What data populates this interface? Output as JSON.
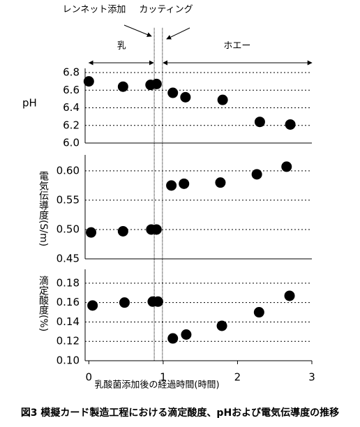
{
  "chart_data": [
    {
      "type": "scatter",
      "y_label": "pH",
      "color": "#000000",
      "grid": true,
      "x": [
        0,
        0.46,
        0.83,
        0.91,
        1.13,
        1.3,
        1.8,
        2.3,
        2.71
      ],
      "values": [
        6.7,
        6.64,
        6.66,
        6.67,
        6.57,
        6.52,
        6.49,
        6.24,
        6.21
      ],
      "xlim": [
        -0.05,
        3
      ],
      "ylim": [
        6.0,
        6.8
      ],
      "yticks": [
        {
          "value": 6,
          "label": "6.0"
        },
        6.2,
        6.4,
        6.6,
        6.8
      ]
    },
    {
      "type": "scatter",
      "y_label": "電気伝導度(S/m)",
      "color": "#000000",
      "grid": true,
      "x": [
        0.03,
        0.46,
        0.84,
        0.91,
        1.11,
        1.28,
        1.77,
        2.26,
        2.66
      ],
      "values": [
        0.495,
        0.497,
        0.5,
        0.5,
        0.575,
        0.578,
        0.58,
        0.594,
        0.607
      ],
      "xlim": [
        -0.05,
        3
      ],
      "ylim": [
        0.45,
        0.62
      ],
      "yticks": [
        0.45,
        {
          "value": 0.5,
          "label": "0.50"
        },
        0.55,
        {
          "value": 0.6,
          "label": "0.60"
        }
      ]
    },
    {
      "type": "scatter",
      "y_label": "滴定酸度(%)",
      "x_label": "乳酸菌添加後の経過時間(時間)",
      "color": "#000000",
      "grid": true,
      "x": [
        0.05,
        0.48,
        0.86,
        0.93,
        1.13,
        1.31,
        1.79,
        2.29,
        2.7
      ],
      "values": [
        0.157,
        0.16,
        0.161,
        0.161,
        0.123,
        0.127,
        0.136,
        0.15,
        0.167
      ],
      "xlim": [
        -0.05,
        3
      ],
      "ylim": [
        0.1,
        0.19
      ],
      "yticks": [
        {
          "value": 0.1,
          "label": "0.10"
        },
        0.12,
        0.14,
        0.16,
        0.18
      ],
      "xticks": [
        0,
        1,
        2,
        3
      ]
    }
  ],
  "markers": [
    {
      "label": "レンネット添加",
      "x": 0.88
    },
    {
      "label": "カッティング",
      "x": 0.99
    }
  ],
  "phases": [
    {
      "label": "乳"
    },
    {
      "label": "ホエー"
    }
  ],
  "caption": "図3 模擬カード製造工程における滴定酸度、pHおよび電気伝導度の推移"
}
